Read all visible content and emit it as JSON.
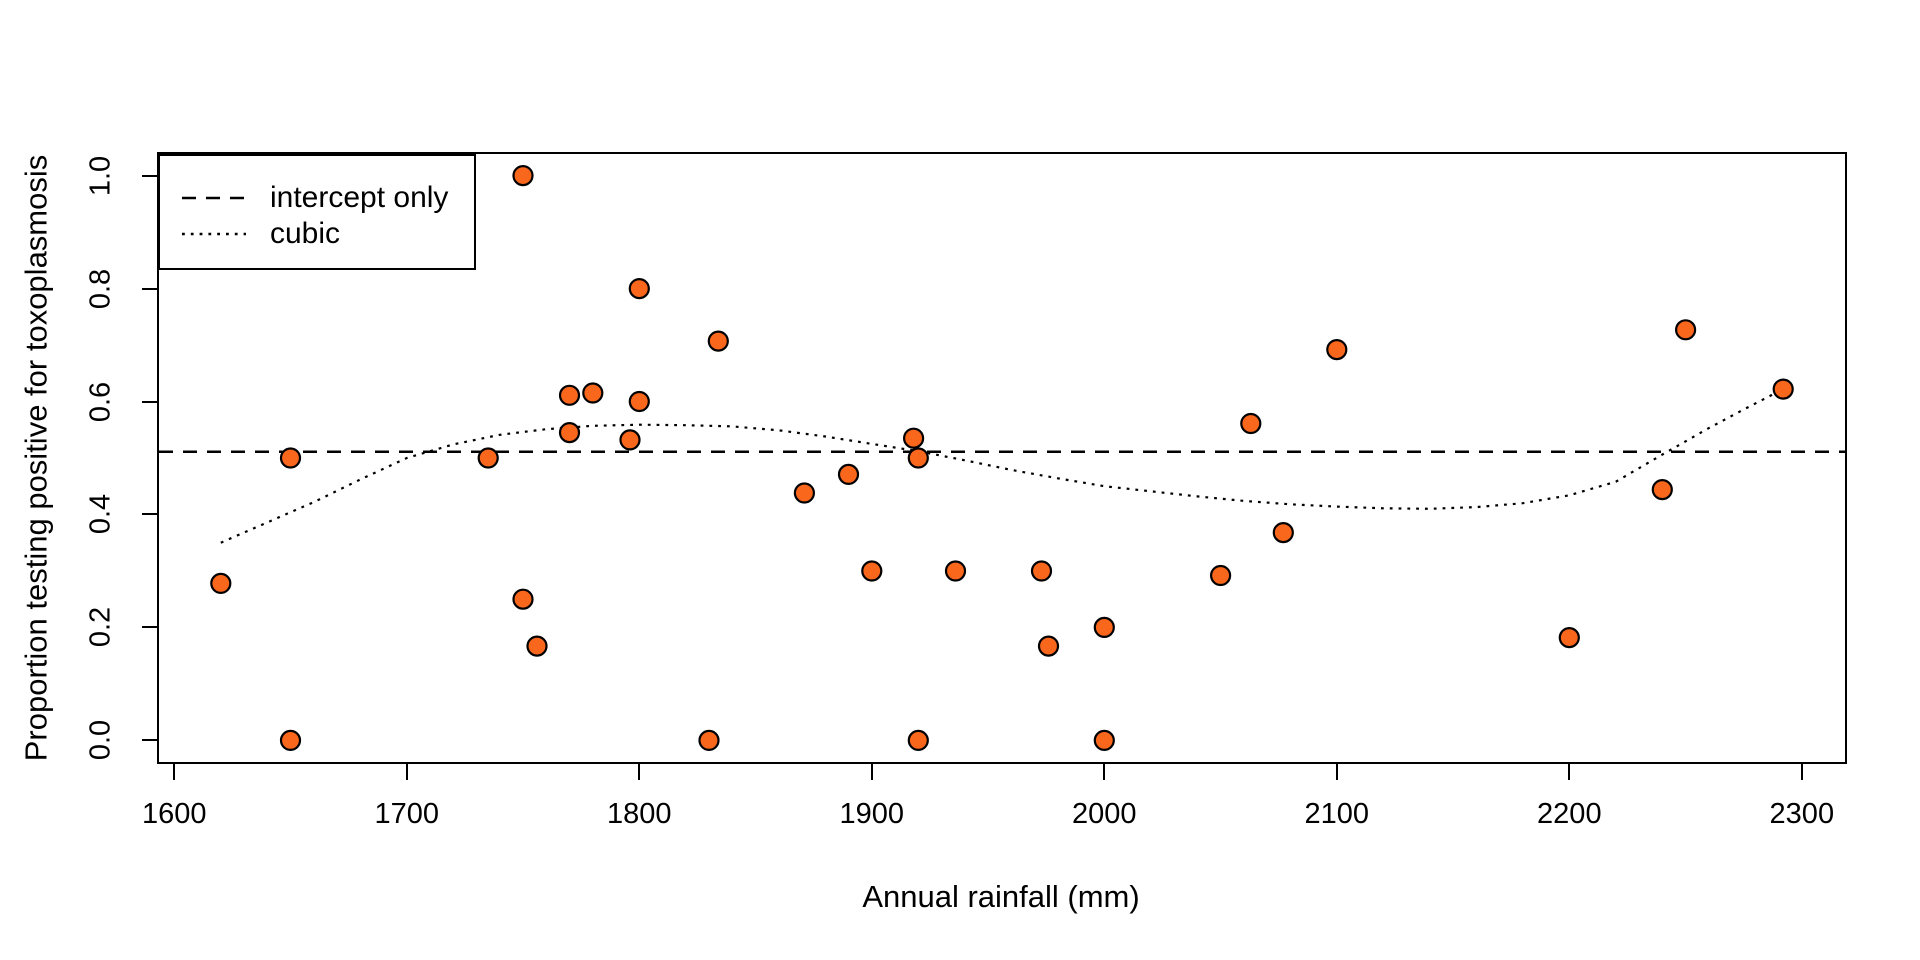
{
  "figure": {
    "background": "#ffffff",
    "foreground": "#000000"
  },
  "chart_data": {
    "type": "scatter",
    "title": "",
    "xlabel": "Annual rainfall (mm)",
    "ylabel": "Proportion testing positive for toxoplasmosis",
    "xlim": [
      1593,
      2319
    ],
    "ylim": [
      -0.04,
      1.04
    ],
    "grid": false,
    "x_ticks": [
      1600,
      1700,
      1800,
      1900,
      2000,
      2100,
      2200,
      2300
    ],
    "x_tick_labels": [
      "1600",
      "1700",
      "1800",
      "1900",
      "2000",
      "2100",
      "2200",
      "2300"
    ],
    "y_ticks": [
      0.0,
      0.2,
      0.4,
      0.6,
      0.8,
      1.0
    ],
    "y_tick_labels": [
      "0.0",
      "0.2",
      "0.4",
      "0.6",
      "0.8",
      "1.0"
    ],
    "point_style": {
      "shape": "circle",
      "fill": "#F9671D",
      "stroke": "#000000",
      "radius": 9.5,
      "stroke_width": 2.2
    },
    "points": [
      {
        "rainfall": 1620,
        "proportion": 0.278
      },
      {
        "rainfall": 1650,
        "proportion": 0.5
      },
      {
        "rainfall": 1650,
        "proportion": 0.0
      },
      {
        "rainfall": 1735,
        "proportion": 0.5
      },
      {
        "rainfall": 1750,
        "proportion": 1.0
      },
      {
        "rainfall": 1750,
        "proportion": 0.25
      },
      {
        "rainfall": 1756,
        "proportion": 0.167
      },
      {
        "rainfall": 1770,
        "proportion": 0.545
      },
      {
        "rainfall": 1770,
        "proportion": 0.611
      },
      {
        "rainfall": 1780,
        "proportion": 0.615
      },
      {
        "rainfall": 1796,
        "proportion": 0.532
      },
      {
        "rainfall": 1800,
        "proportion": 0.6
      },
      {
        "rainfall": 1800,
        "proportion": 0.8
      },
      {
        "rainfall": 1830,
        "proportion": 0.0
      },
      {
        "rainfall": 1834,
        "proportion": 0.707
      },
      {
        "rainfall": 1871,
        "proportion": 0.438
      },
      {
        "rainfall": 1890,
        "proportion": 0.471
      },
      {
        "rainfall": 1900,
        "proportion": 0.3
      },
      {
        "rainfall": 1918,
        "proportion": 0.535
      },
      {
        "rainfall": 1920,
        "proportion": 0.5
      },
      {
        "rainfall": 1920,
        "proportion": 0.0
      },
      {
        "rainfall": 1936,
        "proportion": 0.3
      },
      {
        "rainfall": 1973,
        "proportion": 0.3
      },
      {
        "rainfall": 1976,
        "proportion": 0.167
      },
      {
        "rainfall": 2000,
        "proportion": 0.2
      },
      {
        "rainfall": 2000,
        "proportion": 0.0
      },
      {
        "rainfall": 2050,
        "proportion": 0.292
      },
      {
        "rainfall": 2063,
        "proportion": 0.561
      },
      {
        "rainfall": 2077,
        "proportion": 0.368
      },
      {
        "rainfall": 2100,
        "proportion": 0.692
      },
      {
        "rainfall": 2200,
        "proportion": 0.182
      },
      {
        "rainfall": 2240,
        "proportion": 0.444
      },
      {
        "rainfall": 2250,
        "proportion": 0.727
      },
      {
        "rainfall": 2292,
        "proportion": 0.622
      }
    ],
    "models": [
      {
        "name": "intercept only",
        "line_style": "dashed",
        "color": "#000000",
        "value": 0.511
      },
      {
        "name": "cubic",
        "line_style": "dotted",
        "color": "#000000",
        "curve": [
          [
            1620,
            0.35
          ],
          [
            1640,
            0.386
          ],
          [
            1660,
            0.422
          ],
          [
            1680,
            0.462
          ],
          [
            1700,
            0.5
          ],
          [
            1720,
            0.524
          ],
          [
            1740,
            0.541
          ],
          [
            1760,
            0.551
          ],
          [
            1780,
            0.557
          ],
          [
            1800,
            0.559
          ],
          [
            1820,
            0.558
          ],
          [
            1840,
            0.556
          ],
          [
            1860,
            0.549
          ],
          [
            1880,
            0.538
          ],
          [
            1900,
            0.525
          ],
          [
            1920,
            0.512
          ],
          [
            1940,
            0.496
          ],
          [
            1960,
            0.479
          ],
          [
            1980,
            0.464
          ],
          [
            2000,
            0.45
          ],
          [
            2020,
            0.441
          ],
          [
            2040,
            0.432
          ],
          [
            2060,
            0.424
          ],
          [
            2080,
            0.418
          ],
          [
            2100,
            0.414
          ],
          [
            2120,
            0.411
          ],
          [
            2140,
            0.41
          ],
          [
            2160,
            0.413
          ],
          [
            2180,
            0.42
          ],
          [
            2200,
            0.434
          ],
          [
            2220,
            0.458
          ],
          [
            2240,
            0.506
          ],
          [
            2260,
            0.553
          ],
          [
            2276,
            0.588
          ],
          [
            2292,
            0.622
          ]
        ]
      }
    ],
    "legend": {
      "position": "top-left",
      "entries": [
        "intercept only",
        "cubic"
      ]
    }
  }
}
